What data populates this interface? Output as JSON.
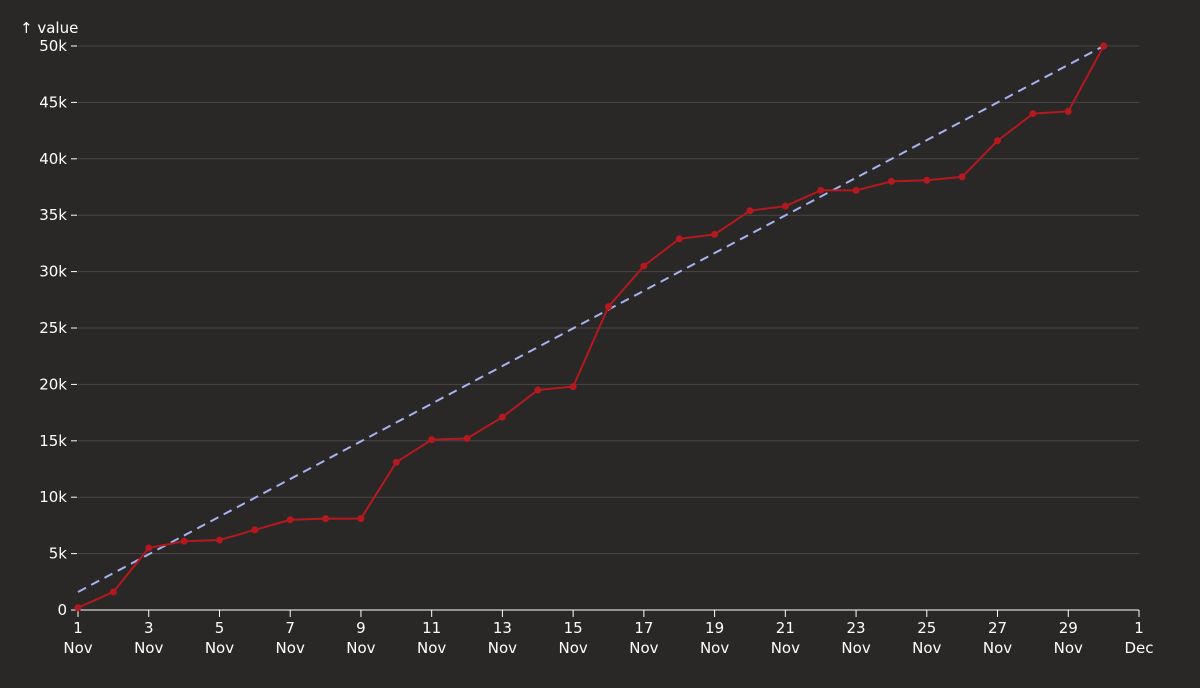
{
  "chart_data": {
    "type": "line",
    "title": "",
    "ylabel": "↑ value",
    "xlabel": "",
    "x_domain": [
      "2023-11-01",
      "2023-12-01"
    ],
    "ylim": [
      0,
      50000
    ],
    "grid": true,
    "colors": {
      "background": "#2a2727",
      "grid": "#4a4646",
      "axis": "#ffffff",
      "series": "#b3191f",
      "trend": "#a6b3f2"
    },
    "y_ticks": [
      {
        "value": 0,
        "label": "0"
      },
      {
        "value": 5000,
        "label": "5k"
      },
      {
        "value": 10000,
        "label": "10k"
      },
      {
        "value": 15000,
        "label": "15k"
      },
      {
        "value": 20000,
        "label": "20k"
      },
      {
        "value": 25000,
        "label": "25k"
      },
      {
        "value": 30000,
        "label": "30k"
      },
      {
        "value": 35000,
        "label": "35k"
      },
      {
        "value": 40000,
        "label": "40k"
      },
      {
        "value": 45000,
        "label": "45k"
      },
      {
        "value": 50000,
        "label": "50k"
      }
    ],
    "x_ticks": [
      {
        "value": "2023-11-01",
        "day": "1",
        "month": "Nov"
      },
      {
        "value": "2023-11-03",
        "day": "3",
        "month": "Nov"
      },
      {
        "value": "2023-11-05",
        "day": "5",
        "month": "Nov"
      },
      {
        "value": "2023-11-07",
        "day": "7",
        "month": "Nov"
      },
      {
        "value": "2023-11-09",
        "day": "9",
        "month": "Nov"
      },
      {
        "value": "2023-11-11",
        "day": "11",
        "month": "Nov"
      },
      {
        "value": "2023-11-13",
        "day": "13",
        "month": "Nov"
      },
      {
        "value": "2023-11-15",
        "day": "15",
        "month": "Nov"
      },
      {
        "value": "2023-11-17",
        "day": "17",
        "month": "Nov"
      },
      {
        "value": "2023-11-19",
        "day": "19",
        "month": "Nov"
      },
      {
        "value": "2023-11-21",
        "day": "21",
        "month": "Nov"
      },
      {
        "value": "2023-11-23",
        "day": "23",
        "month": "Nov"
      },
      {
        "value": "2023-11-25",
        "day": "25",
        "month": "Nov"
      },
      {
        "value": "2023-11-27",
        "day": "27",
        "month": "Nov"
      },
      {
        "value": "2023-11-29",
        "day": "29",
        "month": "Nov"
      },
      {
        "value": "2023-12-01",
        "day": "1",
        "month": "Dec"
      }
    ],
    "series": [
      {
        "x": [
          "2023-11-01",
          "2023-11-02",
          "2023-11-03",
          "2023-11-04",
          "2023-11-05",
          "2023-11-06",
          "2023-11-07",
          "2023-11-08",
          "2023-11-09",
          "2023-11-10",
          "2023-11-11",
          "2023-11-12",
          "2023-11-13",
          "2023-11-14",
          "2023-11-15",
          "2023-11-16",
          "2023-11-17",
          "2023-11-18",
          "2023-11-19",
          "2023-11-20",
          "2023-11-21",
          "2023-11-22",
          "2023-11-23",
          "2023-11-24",
          "2023-11-25",
          "2023-11-26",
          "2023-11-27",
          "2023-11-28",
          "2023-11-29",
          "2023-11-30"
        ],
        "values": [
          200,
          1600,
          5500,
          6100,
          6200,
          7100,
          8000,
          8100,
          8100,
          13100,
          15100,
          15200,
          17100,
          19500,
          19800,
          26900,
          30500,
          32900,
          33300,
          35400,
          35800,
          37200,
          37200,
          38000,
          38100,
          38400,
          41600,
          44000,
          44200,
          50000
        ]
      }
    ],
    "trend": {
      "style": "dashed",
      "x": [
        "2023-11-01",
        "2023-11-30"
      ],
      "values": [
        1600,
        50000
      ]
    }
  }
}
